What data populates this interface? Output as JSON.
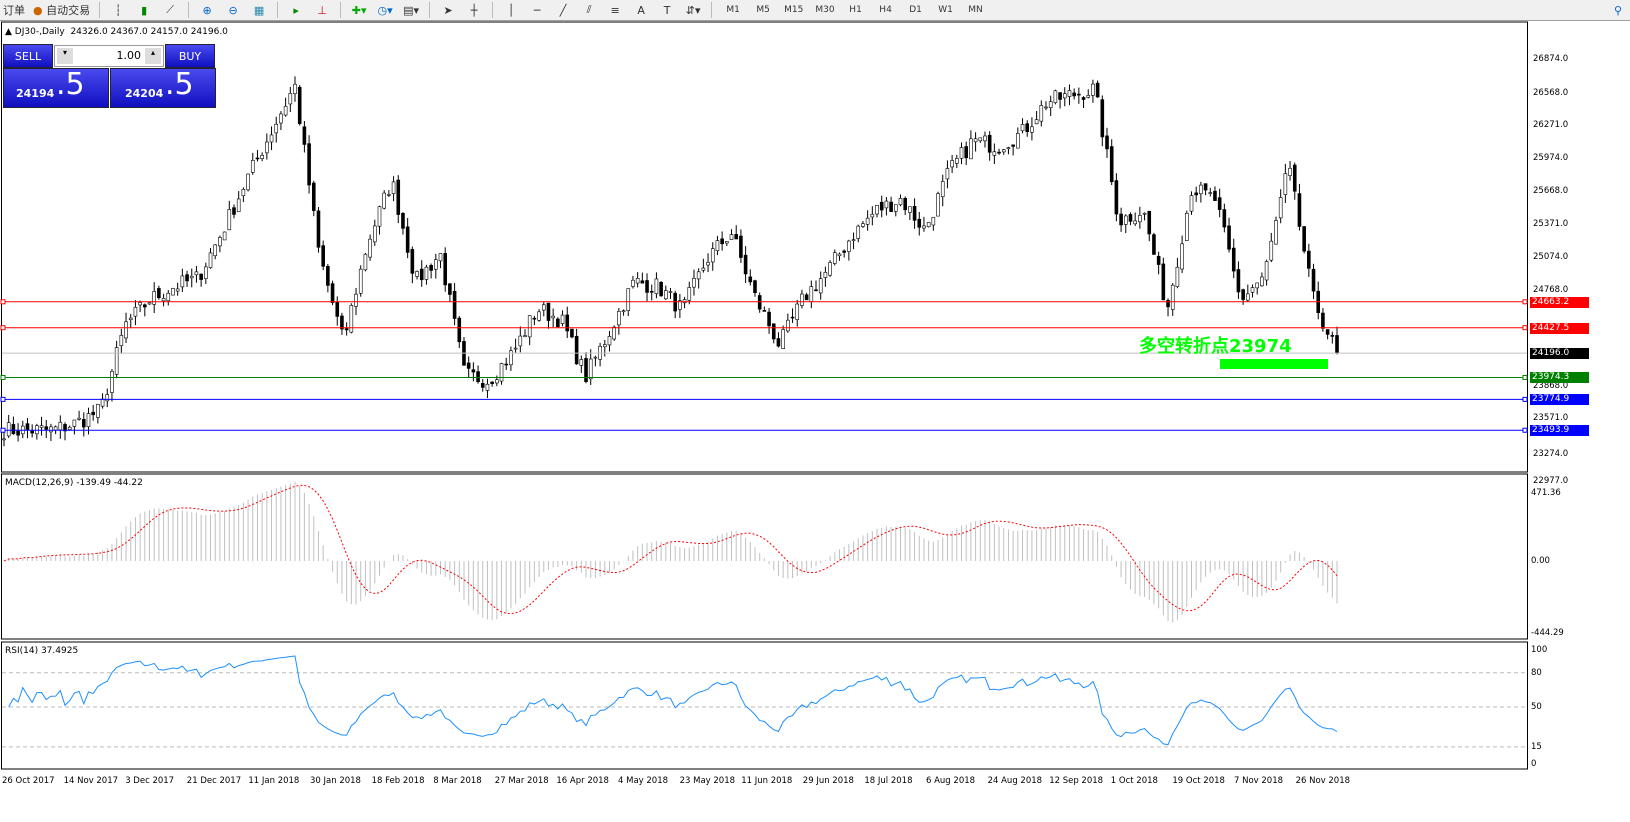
{
  "toolbar": {
    "items": [
      "订单",
      "自动交易"
    ],
    "timeframes": [
      "M1",
      "M5",
      "M15",
      "M30",
      "H1",
      "H4",
      "D1",
      "W1",
      "MN"
    ]
  },
  "chart_header": {
    "symbol": "DJ30-,Daily",
    "ohlc": "24326.0 24367.0 24157.0 24196.0"
  },
  "trade_panel": {
    "sell_label": "SELL",
    "buy_label": "BUY",
    "volume": "1.00",
    "sell_price_main": "24194",
    "sell_price_frac": ".5",
    "buy_price_main": "24204",
    "buy_price_frac": ".5"
  },
  "annotation": {
    "text": "多空转折点23974",
    "color": "#00ff00"
  },
  "price_axis": {
    "ticks": [
      "26874.0",
      "26568.0",
      "26271.0",
      "25974.0",
      "25668.0",
      "25371.0",
      "25074.0",
      "24768.0",
      "23868.0",
      "23571.0",
      "23274.0",
      "22977.0"
    ]
  },
  "levels": [
    {
      "value": "24663.2",
      "color": "#ff0000"
    },
    {
      "value": "24427.5",
      "color": "#ff0000"
    },
    {
      "value": "24196.0",
      "color": "#000000"
    },
    {
      "value": "23974.3",
      "color": "#008000"
    },
    {
      "value": "23774.9",
      "color": "#0000ff"
    },
    {
      "value": "23493.9",
      "color": "#0000ff"
    }
  ],
  "macd": {
    "label": "MACD(12,26,9) -139.49 -44.22",
    "ticks": [
      "471.36",
      "0.00",
      "-444.29"
    ]
  },
  "rsi": {
    "label": "RSI(14) 37.4925",
    "ticks": [
      "100",
      "80",
      "50",
      "15",
      "0"
    ]
  },
  "date_axis": [
    "26 Oct 2017",
    "14 Nov 2017",
    "3 Dec 2017",
    "21 Dec 2017",
    "11 Jan 2018",
    "30 Jan 2018",
    "18 Feb 2018",
    "8 Mar 2018",
    "27 Mar 2018",
    "16 Apr 2018",
    "4 May 2018",
    "23 May 2018",
    "11 Jun 2018",
    "29 Jun 2018",
    "18 Jul 2018",
    "6 Aug 2018",
    "24 Aug 2018",
    "12 Sep 2018",
    "1 Oct 2018",
    "19 Oct 2018",
    "7 Nov 2018",
    "26 Nov 2018"
  ],
  "chart_data": {
    "type": "candlestick",
    "timeframe": "Daily",
    "ylim": [
      22977,
      26874
    ],
    "approx_close_path": [
      23495,
      23495,
      23495,
      23560,
      23677,
      24450,
      24680,
      24800,
      24880,
      25300,
      25770,
      26200,
      26637,
      25100,
      24300,
      25200,
      25772,
      24850,
      25100,
      24000,
      23950,
      24200,
      24600,
      24500,
      23980,
      24400,
      24850,
      24800,
      24588,
      25050,
      25300,
      24700,
      24270,
      24700,
      24950,
      25270,
      25499,
      25600,
      25317,
      25850,
      26136,
      26080,
      26200,
      26480,
      26546,
      26600,
      25400,
      25500,
      24600,
      25700,
      25590,
      24680,
      24900,
      25900,
      24700,
      24196
    ]
  }
}
